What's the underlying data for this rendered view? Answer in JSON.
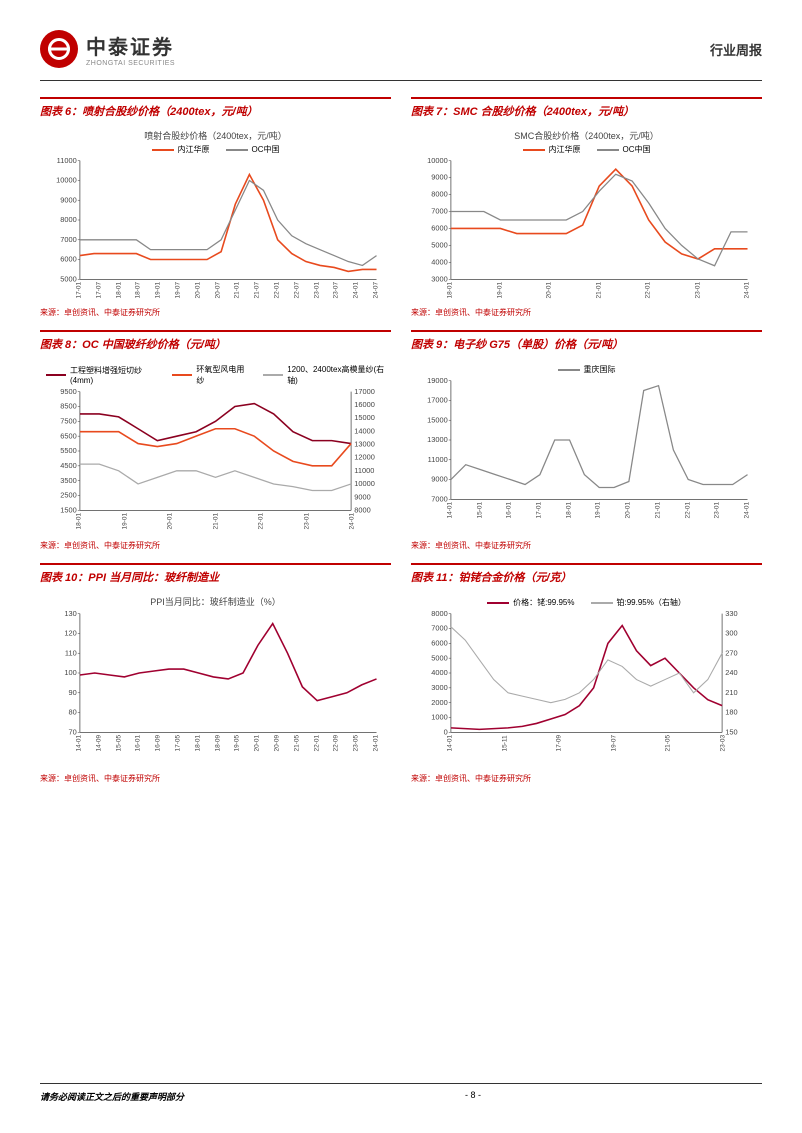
{
  "header": {
    "logo_cn": "中泰证券",
    "logo_en": "ZHONGTAI SECURITIES",
    "report_type": "行业周报"
  },
  "charts": [
    {
      "id": "chart6",
      "title": "图表 6：喷射合股纱价格（2400tex，元/吨）",
      "subtitle": "喷射合股纱价格（2400tex，元/吨）",
      "type": "line",
      "legend": [
        {
          "label": "内江华原",
          "color": "#e84a1e"
        },
        {
          "label": "OC中国",
          "color": "#888888"
        }
      ],
      "ylim": [
        5000,
        11000
      ],
      "ytick_step": 1000,
      "x_categories": [
        "17-01",
        "17-07",
        "18-01",
        "18-07",
        "19-01",
        "19-07",
        "20-01",
        "20-07",
        "21-01",
        "21-07",
        "22-01",
        "22-07",
        "23-01",
        "23-07",
        "24-01",
        "24-07"
      ],
      "series": [
        {
          "color": "#e84a1e",
          "width": 1.5,
          "values": [
            6200,
            6300,
            6300,
            6300,
            6300,
            6000,
            6000,
            6000,
            6000,
            6000,
            6400,
            8800,
            10300,
            9000,
            7000,
            6300,
            5900,
            5700,
            5600,
            5400,
            5500,
            5500
          ]
        },
        {
          "color": "#888888",
          "width": 1.2,
          "values": [
            7000,
            7000,
            7000,
            7000,
            7000,
            6500,
            6500,
            6500,
            6500,
            6500,
            7000,
            8500,
            10000,
            9500,
            8000,
            7200,
            6800,
            6500,
            6200,
            5900,
            5700,
            6200
          ]
        }
      ],
      "source": "来源：卓创资讯、中泰证券研究所"
    },
    {
      "id": "chart7",
      "title": "图表 7：SMC 合股纱价格（2400tex，元/吨）",
      "subtitle": "SMC合股纱价格（2400tex，元/吨）",
      "type": "line",
      "legend": [
        {
          "label": "内江华原",
          "color": "#e84a1e"
        },
        {
          "label": "OC中国",
          "color": "#888888"
        }
      ],
      "ylim": [
        3000,
        10000
      ],
      "ytick_step": 1000,
      "x_categories": [
        "18-01",
        "19-01",
        "20-01",
        "21-01",
        "22-01",
        "23-01",
        "24-01"
      ],
      "series": [
        {
          "color": "#e84a1e",
          "width": 1.5,
          "values": [
            6000,
            6000,
            6000,
            6000,
            5700,
            5700,
            5700,
            5700,
            6200,
            8500,
            9500,
            8500,
            6500,
            5200,
            4500,
            4200,
            4800,
            4800,
            4800
          ]
        },
        {
          "color": "#888888",
          "width": 1.2,
          "values": [
            7000,
            7000,
            7000,
            6500,
            6500,
            6500,
            6500,
            6500,
            7000,
            8200,
            9200,
            8800,
            7500,
            6000,
            5000,
            4200,
            3800,
            5800,
            5800
          ]
        }
      ],
      "source": "来源：卓创资讯、中泰证券研究所"
    },
    {
      "id": "chart8",
      "title": "图表 8：OC 中国玻纤纱价格（元/吨）",
      "type": "line_dual",
      "legend": [
        {
          "label": "工程塑料增强短切纱(4mm)",
          "color": "#8b0020"
        },
        {
          "label": "环氧型风电用纱",
          "color": "#e84a1e"
        },
        {
          "label": "1200、2400tex高模量纱(右轴)",
          "color": "#aaaaaa"
        }
      ],
      "ylim": [
        1500,
        9500
      ],
      "ytick_step": 1000,
      "ylim_right": [
        8000,
        17000
      ],
      "ytick_step_right": 1000,
      "x_categories": [
        "18-01",
        "19-01",
        "20-01",
        "21-01",
        "22-01",
        "23-01",
        "24-01"
      ],
      "series": [
        {
          "color": "#8b0020",
          "width": 1.5,
          "values": [
            8000,
            8000,
            7800,
            7000,
            6200,
            6500,
            6800,
            7500,
            8500,
            8700,
            8000,
            6800,
            6200,
            6200,
            6000
          ]
        },
        {
          "color": "#e84a1e",
          "width": 1.5,
          "values": [
            6800,
            6800,
            6800,
            6000,
            5800,
            6000,
            6500,
            7000,
            7000,
            6500,
            5500,
            4800,
            4500,
            4500,
            6000
          ]
        },
        {
          "color": "#aaaaaa",
          "width": 1.2,
          "axis": "right",
          "values": [
            11500,
            11500,
            11000,
            10000,
            10500,
            11000,
            11000,
            10500,
            11000,
            10500,
            10000,
            9800,
            9500,
            9500,
            10000
          ]
        }
      ],
      "source": "来源：卓创资讯、中泰证券研究所"
    },
    {
      "id": "chart9",
      "title": "图表 9：电子纱 G75（单股）价格（元/吨）",
      "type": "line",
      "legend": [
        {
          "label": "重庆国际",
          "color": "#888888"
        }
      ],
      "ylim": [
        7000,
        19000
      ],
      "ytick_step": 2000,
      "x_categories": [
        "14-01",
        "15-01",
        "16-01",
        "17-01",
        "18-01",
        "19-01",
        "20-01",
        "21-01",
        "22-01",
        "23-01",
        "24-01"
      ],
      "series": [
        {
          "color": "#888888",
          "width": 1.2,
          "values": [
            9000,
            10500,
            10000,
            9500,
            9000,
            8500,
            9500,
            13000,
            13000,
            9500,
            8200,
            8200,
            8800,
            18000,
            18500,
            12000,
            9000,
            8500,
            8500,
            8500,
            9500
          ]
        }
      ],
      "source": "来源：卓创资讯、中泰证券研究所"
    },
    {
      "id": "chart10",
      "title": "图表 10：PPI 当月同比：玻纤制造业",
      "subtitle": "PPI当月同比：玻纤制造业（%）",
      "type": "line",
      "legend": [],
      "ylim": [
        70,
        130
      ],
      "ytick_step": 10,
      "x_categories": [
        "14-01",
        "14-09",
        "15-05",
        "16-01",
        "16-09",
        "17-05",
        "18-01",
        "18-09",
        "19-05",
        "20-01",
        "20-09",
        "21-05",
        "22-01",
        "22-09",
        "23-05",
        "24-01"
      ],
      "series": [
        {
          "color": "#a00030",
          "width": 1.5,
          "values": [
            99,
            100,
            99,
            98,
            100,
            101,
            102,
            102,
            100,
            98,
            97,
            100,
            114,
            125,
            110,
            93,
            86,
            88,
            90,
            94,
            97
          ]
        }
      ],
      "source": "来源：卓创资讯、中泰证券研究所"
    },
    {
      "id": "chart11",
      "title": "图表 11：铂铑合金价格（元/克）",
      "type": "line_dual",
      "legend": [
        {
          "label": "价格：铑:99.95%",
          "color": "#a00030"
        },
        {
          "label": "铂:99.95%（右轴）",
          "color": "#aaaaaa"
        }
      ],
      "ylim": [
        0,
        8000
      ],
      "ytick_step": 1000,
      "ylim_right": [
        150,
        330
      ],
      "ytick_step_right": 30,
      "x_categories": [
        "14-01",
        "15-11",
        "17-09",
        "19-07",
        "21-05",
        "23-03"
      ],
      "series": [
        {
          "color": "#a00030",
          "width": 1.5,
          "values": [
            300,
            250,
            200,
            250,
            300,
            400,
            600,
            900,
            1200,
            1800,
            3000,
            6000,
            7200,
            5500,
            4500,
            5000,
            4000,
            3000,
            2200,
            1800
          ]
        },
        {
          "color": "#aaaaaa",
          "width": 1.0,
          "axis": "right",
          "values": [
            310,
            290,
            260,
            230,
            210,
            205,
            200,
            195,
            200,
            210,
            230,
            260,
            250,
            230,
            220,
            230,
            240,
            210,
            230,
            270
          ]
        }
      ],
      "source": "来源：卓创资讯、中泰证券研究所"
    }
  ],
  "footer": {
    "disclaimer": "请务必阅读正文之后的重要声明部分",
    "page": "- 8 -"
  },
  "palette": {
    "brand_red": "#c00000",
    "chart_orange": "#e84a1e",
    "chart_gray": "#888888",
    "chart_darkred": "#a00030"
  }
}
